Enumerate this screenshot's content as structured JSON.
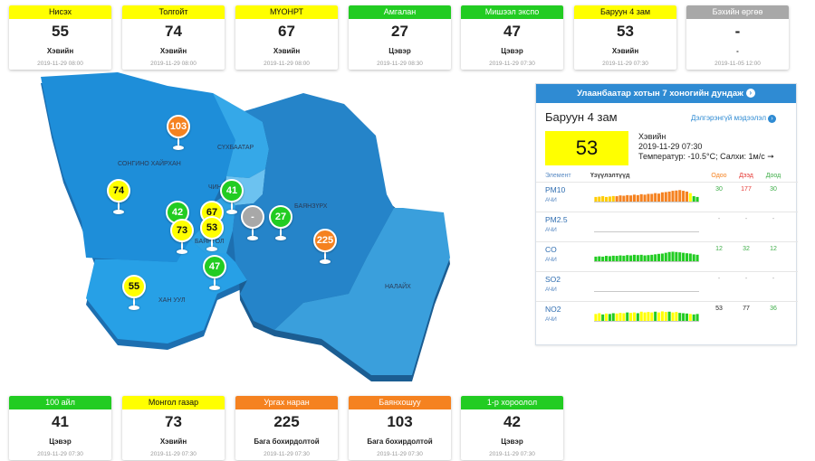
{
  "top_cards": [
    {
      "name": "Нисэх",
      "value": "55",
      "status": "Хэвийн",
      "time": "2019-11-29 08:00",
      "color": "#ffff00",
      "text_color": "#111111"
    },
    {
      "name": "Толгойт",
      "value": "74",
      "status": "Хэвийн",
      "time": "2019-11-29 08:00",
      "color": "#ffff00",
      "text_color": "#111111"
    },
    {
      "name": "МҮОНРТ",
      "value": "67",
      "status": "Хэвийн",
      "time": "2019-11-29 08:00",
      "color": "#ffff00",
      "text_color": "#111111"
    },
    {
      "name": "Амгалан",
      "value": "27",
      "status": "Цэвэр",
      "time": "2019-11-29 08:30",
      "color": "#22cc22",
      "text_color": "#ffffff"
    },
    {
      "name": "Мишээл экспо",
      "value": "47",
      "status": "Цэвэр",
      "time": "2019-11-29 07:30",
      "color": "#22cc22",
      "text_color": "#ffffff"
    },
    {
      "name": "Баруун 4 зам",
      "value": "53",
      "status": "Хэвийн",
      "time": "2019-11-29 07:30",
      "color": "#ffff00",
      "text_color": "#111111"
    },
    {
      "name": "Бэхийн өргөө",
      "value": "-",
      "status": "-",
      "time": "2019-11-05 12:00",
      "color": "#a8a8a8",
      "text_color": "#ffffff"
    }
  ],
  "bottom_cards": [
    {
      "name": "100 айл",
      "value": "41",
      "status": "Цэвэр",
      "time": "2019-11-29 07:30",
      "color": "#22cc22",
      "text_color": "#ffffff"
    },
    {
      "name": "Монгол газар",
      "value": "73",
      "status": "Хэвийн",
      "time": "2019-11-29 07:30",
      "color": "#ffff00",
      "text_color": "#111111"
    },
    {
      "name": "Ургах наран",
      "value": "225",
      "status": "Бага бохирдолтой",
      "time": "2019-11-29 07:30",
      "color": "#f58220",
      "text_color": "#ffffff"
    },
    {
      "name": "Баянхошуу",
      "value": "103",
      "status": "Бага бохирдолтой",
      "time": "2019-11-29 07:30",
      "color": "#f58220",
      "text_color": "#ffffff"
    },
    {
      "name": "1-р хороолол",
      "value": "42",
      "status": "Цэвэр",
      "time": "2019-11-29 07:30",
      "color": "#22cc22",
      "text_color": "#ffffff"
    }
  ],
  "map": {
    "districts": [
      "СҮХБААТАР",
      "СОНГИНО ХАЙРХАН",
      "ЧИНГЭ",
      "БАЯНЗҮРХ",
      "БАЯНГОЛ",
      "ХАН УУЛ",
      "НАЛАЙХ"
    ],
    "pins": [
      {
        "value": "103",
        "color": "#f58220",
        "text_color": "#ffffff"
      },
      {
        "value": "74",
        "color": "#ffff00",
        "text_color": "#111111"
      },
      {
        "value": "41",
        "color": "#22cc22",
        "text_color": "#ffffff"
      },
      {
        "value": "42",
        "color": "#22cc22",
        "text_color": "#ffffff"
      },
      {
        "value": "67",
        "color": "#ffff00",
        "text_color": "#111111"
      },
      {
        "value": "53",
        "color": "#ffff00",
        "text_color": "#111111"
      },
      {
        "value": "-",
        "color": "#a8a8a8",
        "text_color": "#ffffff"
      },
      {
        "value": "27",
        "color": "#22cc22",
        "text_color": "#ffffff"
      },
      {
        "value": "73",
        "color": "#ffff00",
        "text_color": "#111111"
      },
      {
        "value": "225",
        "color": "#f58220",
        "text_color": "#ffffff"
      },
      {
        "value": "47",
        "color": "#22cc22",
        "text_color": "#ffffff"
      },
      {
        "value": "55",
        "color": "#ffff00",
        "text_color": "#111111"
      }
    ]
  },
  "panel": {
    "title": "Улаанбаатар хотын 7 хоногийн дундаж",
    "station": "Баруун 4 зам",
    "details_link": "Дэлгэрэнгүй мэдээлэл",
    "aqi": "53",
    "aqi_color": "#ffff00",
    "status": "Хэвийн",
    "time": "2019-11-29 07:30",
    "weather": "Температур: -10.5°C; Салхи: 1м/с ➞",
    "headers": {
      "element": "Элемент",
      "trend": "Үзүүлэлтүүд",
      "now": "Одоо",
      "max": "Дээд",
      "min": "Доод"
    },
    "header_colors": {
      "now": "#f58220",
      "max": "#e53935",
      "min": "#3fae49"
    },
    "elements": [
      {
        "name": "PM10",
        "code": "АЧИ",
        "now": "30",
        "max": "177",
        "min": "30",
        "now_color": "#3fae49",
        "max_color": "#e53935",
        "min_color": "#3fae49",
        "bars": [
          0.3,
          0.32,
          0.35,
          0.3,
          0.33,
          0.36,
          0.35,
          0.4,
          0.38,
          0.42,
          0.4,
          0.45,
          0.42,
          0.48,
          0.45,
          0.5,
          0.5,
          0.55,
          0.52,
          0.6,
          0.62,
          0.65,
          0.7,
          0.72,
          0.75,
          0.7,
          0.65,
          0.55,
          0.35,
          0.3
        ],
        "bar_colors": [
          "#ffcc00",
          "#ffcc00",
          "#ffcc00",
          "#ffcc00",
          "#ffcc00",
          "#ffcc00",
          "#f58220",
          "#f58220",
          "#f58220",
          "#f58220",
          "#f58220",
          "#f58220",
          "#f58220",
          "#f58220",
          "#f58220",
          "#f58220",
          "#f58220",
          "#f58220",
          "#f58220",
          "#f58220",
          "#f58220",
          "#f58220",
          "#f58220",
          "#f58220",
          "#f58220",
          "#f58220",
          "#f58220",
          "#ffff00",
          "#22cc22",
          "#22cc22"
        ]
      },
      {
        "name": "PM2.5",
        "code": "АЧИ",
        "now": "-",
        "max": "-",
        "min": "-",
        "now_color": "#999999",
        "max_color": "#999999",
        "min_color": "#999999",
        "bars": [],
        "bar_colors": []
      },
      {
        "name": "CO",
        "code": "АЧИ",
        "now": "12",
        "max": "32",
        "min": "12",
        "now_color": "#3fae49",
        "max_color": "#3fae49",
        "min_color": "#3fae49",
        "bars": [
          0.3,
          0.32,
          0.3,
          0.35,
          0.33,
          0.36,
          0.35,
          0.38,
          0.36,
          0.4,
          0.38,
          0.42,
          0.4,
          0.42,
          0.38,
          0.4,
          0.42,
          0.45,
          0.48,
          0.5,
          0.55,
          0.6,
          0.62,
          0.6,
          0.58,
          0.55,
          0.52,
          0.5,
          0.45,
          0.42
        ],
        "bar_colors": [
          "#22cc22"
        ]
      },
      {
        "name": "SO2",
        "code": "АЧИ",
        "now": "-",
        "max": "-",
        "min": "-",
        "now_color": "#999999",
        "max_color": "#999999",
        "min_color": "#999999",
        "bars": [],
        "bar_colors": []
      },
      {
        "name": "NO2",
        "code": "АЧИ",
        "now": "53",
        "max": "77",
        "min": "36",
        "now_color": "#222222",
        "max_color": "#222222",
        "min_color": "#3fae49",
        "bars": [
          0.45,
          0.5,
          0.42,
          0.48,
          0.45,
          0.5,
          0.48,
          0.52,
          0.5,
          0.55,
          0.52,
          0.55,
          0.5,
          0.6,
          0.55,
          0.58,
          0.55,
          0.6,
          0.55,
          0.62,
          0.58,
          0.6,
          0.55,
          0.58,
          0.52,
          0.5,
          0.48,
          0.45,
          0.42,
          0.45
        ],
        "bar_colors": [
          "#ffff00",
          "#ffff00",
          "#22cc22",
          "#ffff00",
          "#22cc22",
          "#22cc22",
          "#ffff00",
          "#ffff00",
          "#ffff00",
          "#22cc22",
          "#ffff00",
          "#ffff00",
          "#22cc22",
          "#ffff00",
          "#ffff00",
          "#ffff00",
          "#ffff00",
          "#22cc22",
          "#ffff00",
          "#ffff00",
          "#ffff00",
          "#22cc22",
          "#ffff00",
          "#ffff00",
          "#22cc22",
          "#22cc22",
          "#22cc22",
          "#ffff00",
          "#22cc22",
          "#22cc22"
        ]
      }
    ]
  }
}
